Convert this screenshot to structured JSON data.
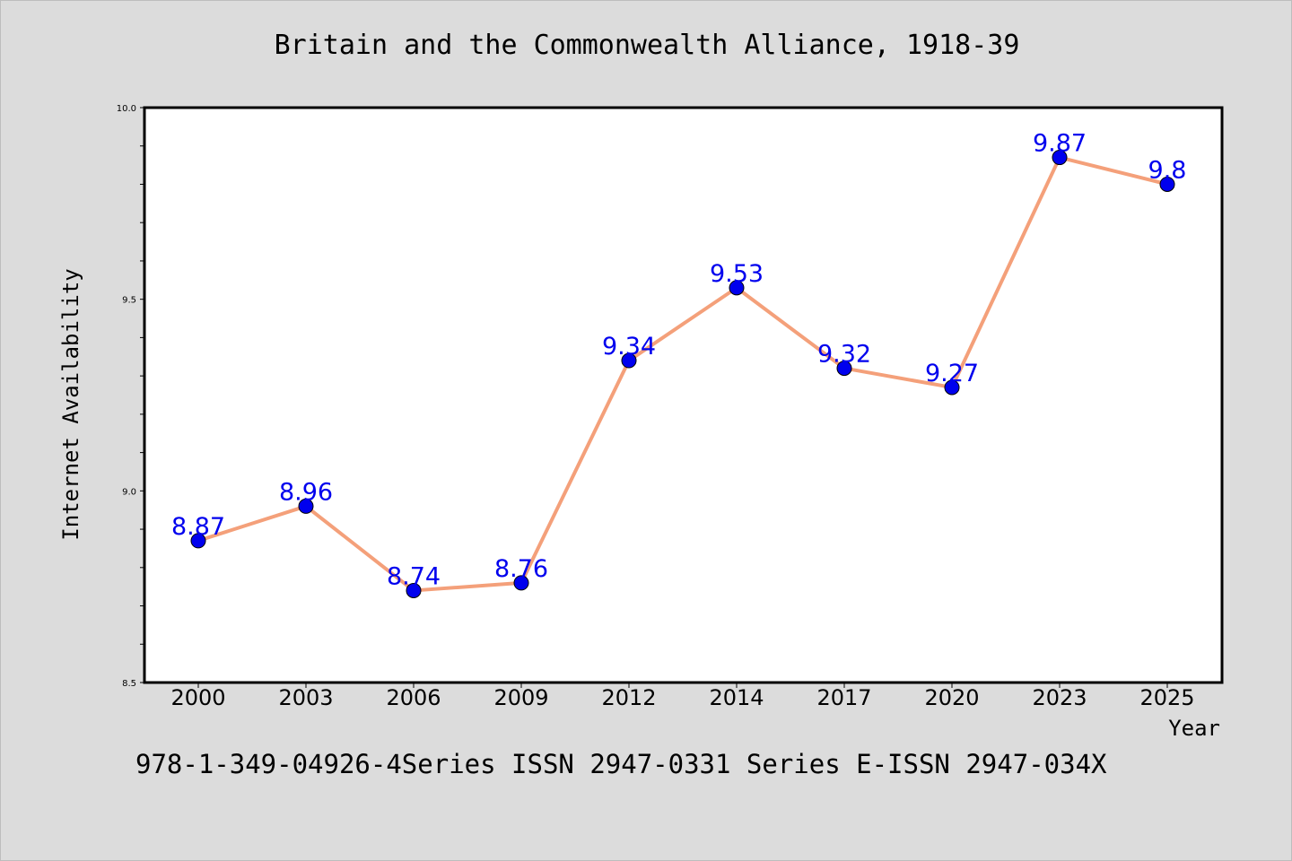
{
  "chart_data": {
    "type": "line",
    "title": "Britain and the Commonwealth Alliance, 1918-39",
    "xlabel": "Year",
    "ylabel": "Internet Availability",
    "categories": [
      "2000",
      "2003",
      "2006",
      "2009",
      "2012",
      "2014",
      "2017",
      "2020",
      "2023",
      "2025"
    ],
    "series": [
      {
        "values": [
          8.87,
          8.96,
          8.74,
          8.76,
          9.34,
          9.53,
          9.32,
          9.27,
          9.87,
          9.8
        ],
        "labels": [
          "8.87",
          "8.96",
          "8.74",
          "8.76",
          "9.34",
          "9.53",
          "9.32",
          "9.27",
          "9.87",
          "9.8"
        ]
      }
    ],
    "ylim": [
      8.5,
      10.0
    ],
    "yticks": [
      "8.5",
      "9.0",
      "9.5",
      "10.0"
    ],
    "grid": false,
    "colors": {
      "line": "#f4a07a",
      "marker": "#0000ee",
      "label": "#0000ee"
    }
  },
  "footer": "978-1-349-04926-4Series ISSN 2947-0331 Series E-ISSN 2947-034X"
}
